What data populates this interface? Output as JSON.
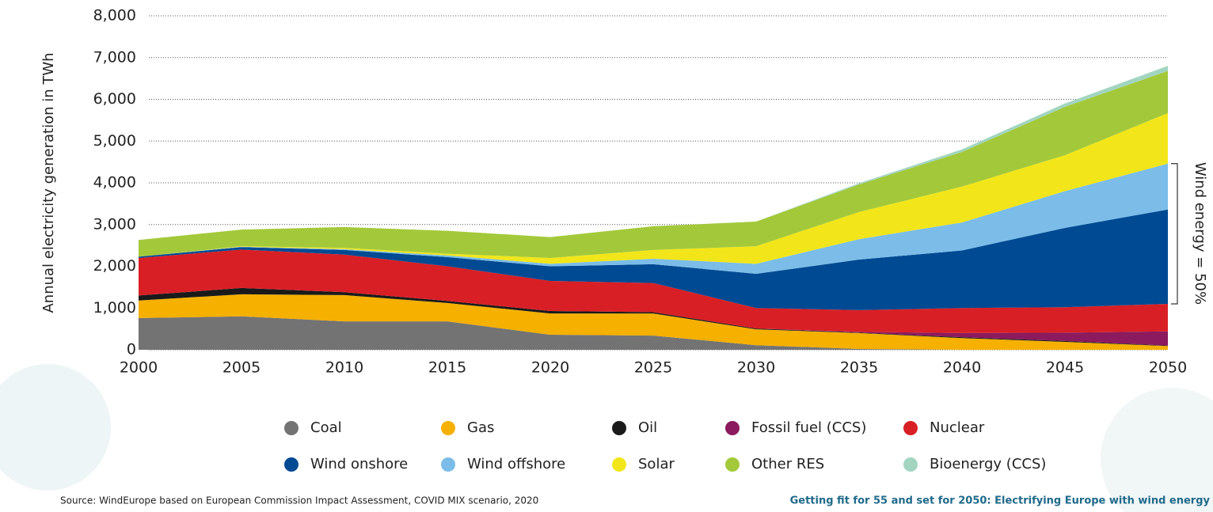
{
  "chart_data": {
    "type": "stacked_area",
    "y_label": "Annual electricity generation in TWh",
    "x": [
      2000,
      2005,
      2010,
      2015,
      2020,
      2025,
      2030,
      2035,
      2040,
      2045,
      2050
    ],
    "xlim": [
      2000,
      2050
    ],
    "xticks": [
      2000,
      2005,
      2010,
      2015,
      2020,
      2025,
      2030,
      2035,
      2040,
      2045,
      2050
    ],
    "ylim": [
      0,
      8000
    ],
    "yticks": [
      0,
      {
        "value": 1000,
        "label": "1,000"
      },
      {
        "value": 2000,
        "label": "2,000"
      },
      {
        "value": 3000,
        "label": "3,000"
      },
      {
        "value": 4000,
        "label": "4,000"
      },
      {
        "value": 5000,
        "label": "5,000"
      },
      {
        "value": 6000,
        "label": "6,000"
      },
      {
        "value": 7000,
        "label": "7,000"
      },
      {
        "value": 8000,
        "label": "8,000"
      }
    ],
    "grid": true,
    "series": [
      {
        "name": "Coal",
        "color": "#737373",
        "values": [
          760,
          800,
          680,
          680,
          360,
          340,
          110,
          20,
          0,
          0,
          0
        ]
      },
      {
        "name": "Gas",
        "color": "#f5b000",
        "values": [
          420,
          530,
          630,
          440,
          510,
          530,
          380,
          380,
          280,
          190,
          90
        ]
      },
      {
        "name": "Oil",
        "color": "#1a1a1a",
        "values": [
          120,
          150,
          70,
          50,
          60,
          30,
          20,
          10,
          20,
          20,
          10
        ]
      },
      {
        "name": "Fossil fuel (CCS)",
        "color": "#8b1a5e",
        "values": [
          0,
          0,
          0,
          0,
          0,
          0,
          0,
          20,
          100,
          200,
          340
        ]
      },
      {
        "name": "Nuclear",
        "color": "#d91f26",
        "values": [
          900,
          920,
          900,
          830,
          720,
          700,
          490,
          520,
          600,
          610,
          660
        ]
      },
      {
        "name": "Wind onshore",
        "color": "#004a93",
        "values": [
          30,
          60,
          110,
          220,
          350,
          450,
          820,
          1210,
          1380,
          1900,
          2260
        ]
      },
      {
        "name": "Wind offshore",
        "color": "#7bbde8",
        "values": [
          0,
          10,
          20,
          40,
          60,
          130,
          240,
          490,
          670,
          880,
          1100
        ]
      },
      {
        "name": "Solar",
        "color": "#f2e61a",
        "values": [
          0,
          10,
          30,
          40,
          140,
          210,
          420,
          650,
          860,
          860,
          1210
        ]
      },
      {
        "name": "Other RES",
        "color": "#a3c93a",
        "values": [
          400,
          400,
          500,
          550,
          500,
          570,
          590,
          660,
          830,
          1160,
          1010
        ]
      },
      {
        "name": "Bioenergy (CCS)",
        "color": "#a2d5c0",
        "values": [
          0,
          0,
          0,
          0,
          0,
          0,
          0,
          30,
          60,
          80,
          120
        ]
      }
    ],
    "annotation": "Wind energy = 50%"
  },
  "footer": {
    "source": "Source: WindEurope based on European Commission Impact Assessment, COVID MIX scenario, 2020",
    "title": "Getting fit for 55 and set for 2050: Electrifying Europe with wind energy"
  }
}
